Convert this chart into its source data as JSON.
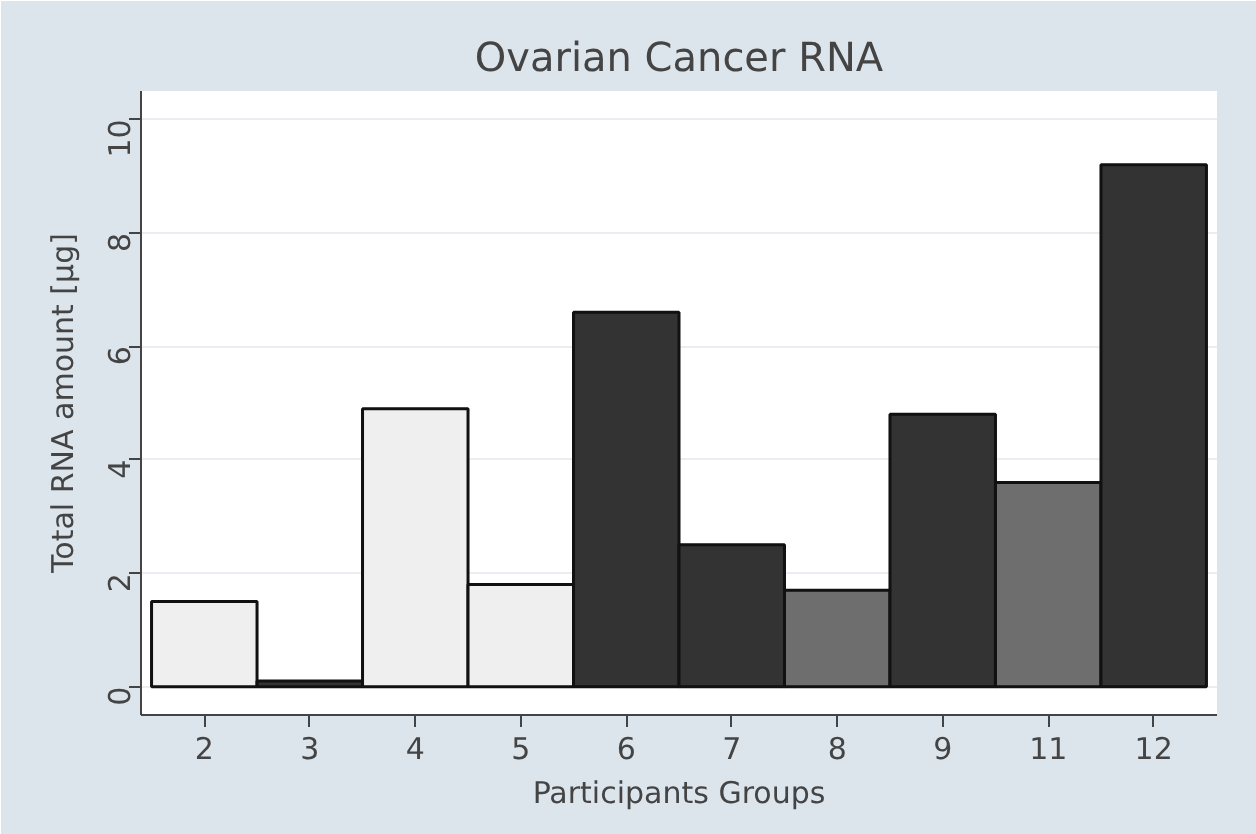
{
  "chart_data": {
    "type": "bar",
    "title": "Ovarian Cancer RNA",
    "xlabel": "Participants Groups",
    "ylabel": "Total RNA amount [μg]",
    "categories": [
      "2",
      "3",
      "4",
      "5",
      "6",
      "7",
      "8",
      "9",
      "11",
      "12"
    ],
    "values": [
      1.5,
      0.1,
      4.9,
      1.8,
      6.6,
      2.5,
      1.7,
      4.8,
      3.6,
      9.2
    ],
    "colors": [
      "#efefef",
      "#333333",
      "#efefef",
      "#efefef",
      "#333333",
      "#333333",
      "#6e6e6e",
      "#333333",
      "#6e6e6e",
      "#333333"
    ],
    "ylim": [
      -0.5,
      10.5
    ],
    "yticks": [
      0,
      2,
      4,
      6,
      8,
      10
    ],
    "grid": "y"
  }
}
